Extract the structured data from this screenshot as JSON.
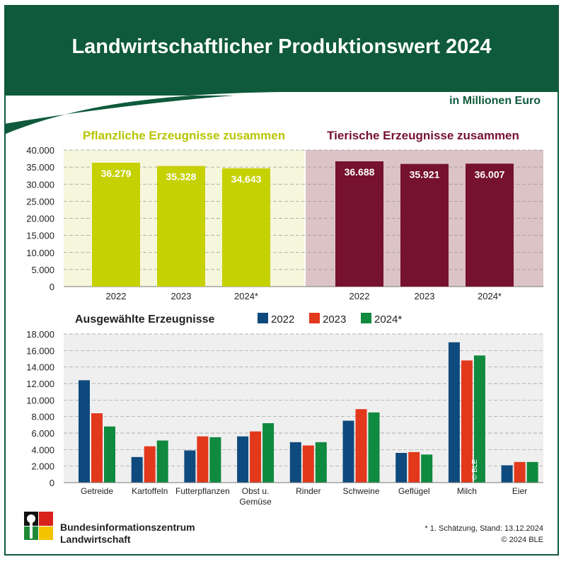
{
  "title": "Landwirtschaftlicher Produktionswert 2024",
  "unit": "in Millionen Euro",
  "colors": {
    "dark_green": "#0f5a3c",
    "plant": "#c5d100",
    "animal": "#76112f",
    "plant_bg": "#f6f6dc",
    "animal_bg": "#dcc3c5",
    "y2022": "#0e4a7e",
    "y2023": "#e2381c",
    "y2024": "#0f8a3e"
  },
  "chart_data": [
    {
      "type": "bar",
      "title": "Pflanzliche Erzeugnisse zusammen",
      "categories": [
        "2022",
        "2023",
        "2024*"
      ],
      "values": [
        36279,
        35328,
        34643
      ],
      "labels": [
        "36.279",
        "35.328",
        "34.643"
      ],
      "ylim": [
        0,
        40000
      ],
      "yticks": [
        "0",
        "5.000",
        "10.000",
        "15.000",
        "20.000",
        "25.000",
        "30.000",
        "35.000",
        "40.000"
      ]
    },
    {
      "type": "bar",
      "title": "Tierische Erzeugnisse zusammen",
      "categories": [
        "2022",
        "2023",
        "2024*"
      ],
      "values": [
        36688,
        35921,
        36007
      ],
      "labels": [
        "36.688",
        "35.921",
        "36.007"
      ],
      "ylim": [
        0,
        40000
      ]
    },
    {
      "type": "bar",
      "title": "Ausgewählte Erzeugnisse",
      "categories": [
        "Getreide",
        "Kartoffeln",
        "Futterpflanzen",
        "Obst u.\nGemüse",
        "Rinder",
        "Schweine",
        "Geflügel",
        "Milch",
        "Eier"
      ],
      "series": [
        {
          "name": "2022",
          "values": [
            12400,
            3100,
            3900,
            5600,
            4900,
            7500,
            3600,
            17000,
            2100
          ]
        },
        {
          "name": "2023",
          "values": [
            8400,
            4400,
            5600,
            6200,
            4500,
            8900,
            3700,
            14800,
            2500
          ]
        },
        {
          "name": "2024*",
          "values": [
            6800,
            5100,
            5500,
            7200,
            4900,
            8500,
            3400,
            15400,
            2500
          ]
        }
      ],
      "ylim": [
        0,
        18000
      ],
      "yticks": [
        "0",
        "2.000",
        "4.000",
        "6.000",
        "8.000",
        "10.000",
        "12.000",
        "14.000",
        "16.000",
        "18.000"
      ],
      "grid": true,
      "legend": "top"
    }
  ],
  "watermark": "© BLE",
  "footer": {
    "org_line1": "Bundesinformationszentrum",
    "org_line2": "Landwirtschaft",
    "note": "* 1. Schätzung, Stand: 13.12.2024",
    "copyright": "© 2024 BLE"
  }
}
